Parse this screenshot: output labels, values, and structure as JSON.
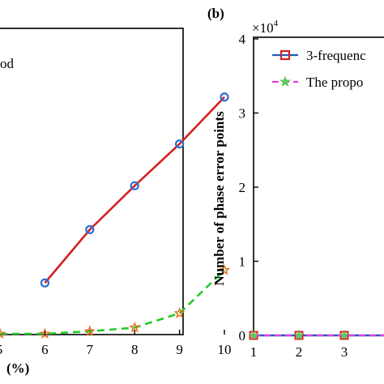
{
  "chart_data": [
    {
      "type": "line",
      "panel_label": "",
      "legend_fragment": "od",
      "xlabel_fragment": "(%)",
      "ylabel": "",
      "xlim": [
        5,
        10
      ],
      "ylim": [
        0,
        1
      ],
      "x": [
        5,
        6,
        7,
        8,
        9,
        10
      ],
      "xticks": [
        "5",
        "6",
        "7",
        "8",
        "9",
        "10"
      ],
      "xtick_labels": [
        "6",
        "7",
        "8",
        "9",
        "10"
      ],
      "series": [
        {
          "name": "",
          "color": "#d62020",
          "dash": "solid",
          "marker": "circle-blue",
          "marker_color": "#2a6fd1",
          "x": [
            6,
            7,
            8,
            9,
            10
          ],
          "values": [
            0.248,
            0.508,
            0.722,
            0.926,
            1.155
          ]
        },
        {
          "name": "",
          "color": "#28c828",
          "dash": "dashed",
          "marker": "star-orange",
          "marker_color": "#e0701e",
          "x": [
            5,
            6,
            7,
            8,
            9,
            10
          ],
          "values": [
            0.0,
            0.0,
            0.012,
            0.03,
            0.1,
            0.31
          ]
        }
      ],
      "grid": false
    },
    {
      "type": "line",
      "panel_label": "(b)",
      "ylabel": "Number of phase error points",
      "y_multiplier": "×10",
      "y_multiplier_exp": "4",
      "yticks": [
        "0",
        "1",
        "2",
        "3",
        "4"
      ],
      "xticks": [
        "1",
        "2",
        "3"
      ],
      "ylim": [
        0,
        4
      ],
      "xlim": [
        1,
        4
      ],
      "legend_position": "top",
      "grid": false,
      "series": [
        {
          "name": "3-frequenc",
          "color": "#1f5fbf",
          "marker": "square-red",
          "marker_color": "#d62020",
          "x": [
            1,
            2,
            3,
            4
          ],
          "values": [
            0,
            0,
            0,
            0
          ]
        },
        {
          "name": "The propo",
          "color": "#e040e0",
          "dash": "dashed",
          "marker": "star-green",
          "marker_color": "#5ec85e",
          "x": [
            1,
            2,
            3,
            4
          ],
          "values": [
            0,
            0,
            0,
            0
          ]
        }
      ]
    }
  ]
}
